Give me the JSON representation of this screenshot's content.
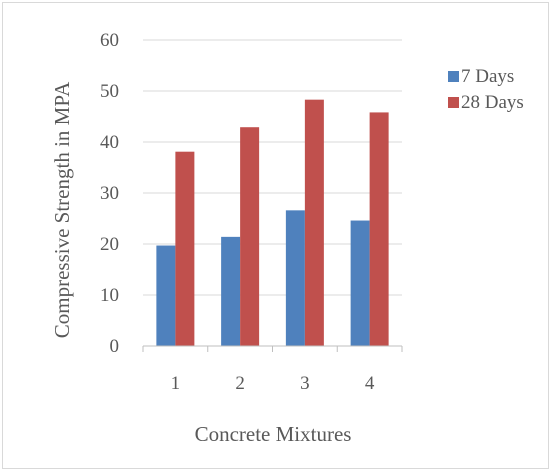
{
  "chart_data": {
    "type": "bar",
    "title": "",
    "xlabel": "Concrete Mixtures",
    "ylabel": "Compressive Strength in MPA",
    "categories": [
      "1",
      "2",
      "3",
      "4"
    ],
    "ylim": [
      0,
      60
    ],
    "yticks": [
      0,
      10,
      20,
      30,
      40,
      50,
      60
    ],
    "grid": true,
    "legend_position": "right",
    "series": [
      {
        "name": "7 Days",
        "values": [
          19.7,
          21.4,
          26.6,
          24.6
        ],
        "color": "#4f81bd"
      },
      {
        "name": "28 Days",
        "values": [
          38.1,
          42.9,
          48.3,
          45.8
        ],
        "color": "#c0504d"
      }
    ]
  }
}
